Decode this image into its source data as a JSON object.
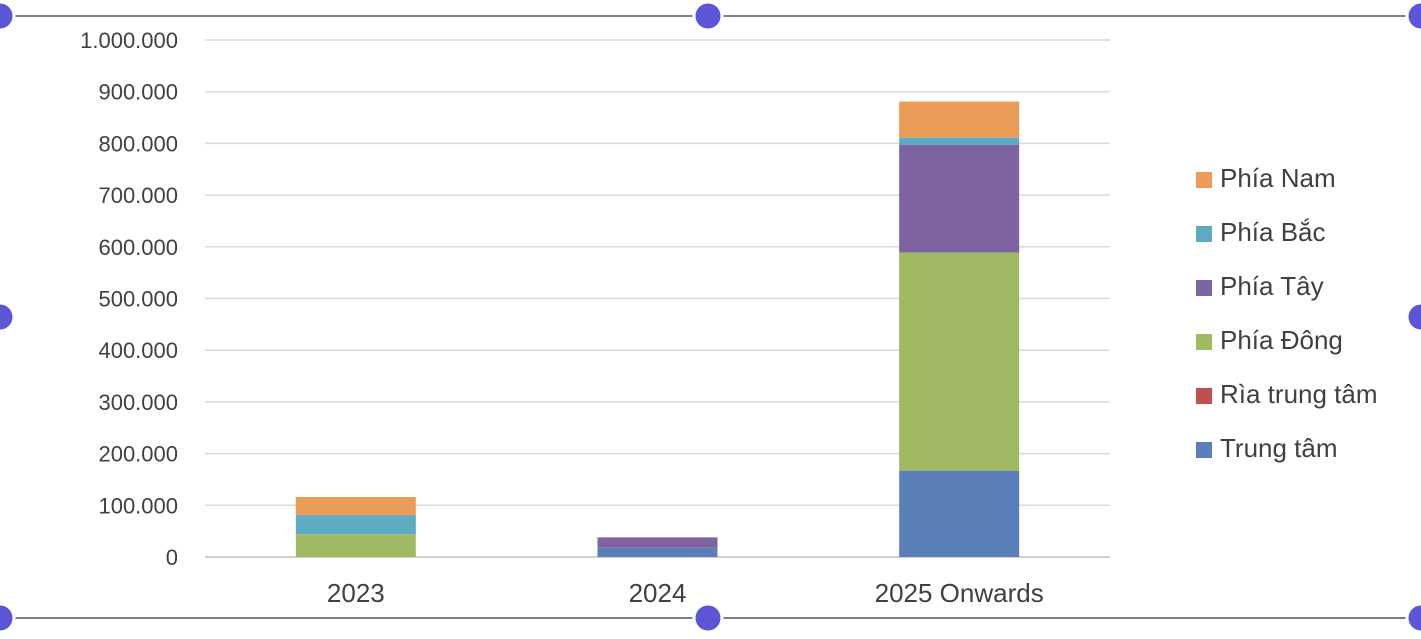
{
  "chart_data": {
    "type": "bar",
    "stacked": true,
    "categories": [
      "2023",
      "2024",
      "2025 Onwards"
    ],
    "series": [
      {
        "name": "Trung tâm",
        "color": "#5B7FB8",
        "values": [
          0,
          18000,
          167000
        ]
      },
      {
        "name": "Rìa trung tâm",
        "color": "#C0504D",
        "values": [
          0,
          0,
          0
        ]
      },
      {
        "name": "Phía Đông",
        "color": "#A2B964",
        "values": [
          44000,
          0,
          422000
        ]
      },
      {
        "name": "Phía Tây",
        "color": "#7D63A0",
        "values": [
          0,
          20000,
          208000
        ]
      },
      {
        "name": "Phía Bắc",
        "color": "#5EA9C4",
        "values": [
          37000,
          0,
          14000
        ]
      },
      {
        "name": "Phía Nam",
        "color": "#EA9D59",
        "values": [
          35000,
          0,
          70000
        ]
      }
    ],
    "title": "",
    "xlabel": "",
    "ylabel": "",
    "ylim": [
      0,
      1000000
    ],
    "yticks": [
      0,
      100000,
      200000,
      300000,
      400000,
      500000,
      600000,
      700000,
      800000,
      900000,
      1000000
    ],
    "ytick_labels": [
      "0",
      "100.000",
      "200.000",
      "300.000",
      "400.000",
      "500.000",
      "600.000",
      "700.000",
      "800.000",
      "900.000",
      "1.000.000"
    ],
    "grid": true,
    "legend_position": "right",
    "legend_order": [
      "Phía Nam",
      "Phía Bắc",
      "Phía Tây",
      "Phía Đông",
      "Rìa trung tâm",
      "Trung tâm"
    ]
  }
}
